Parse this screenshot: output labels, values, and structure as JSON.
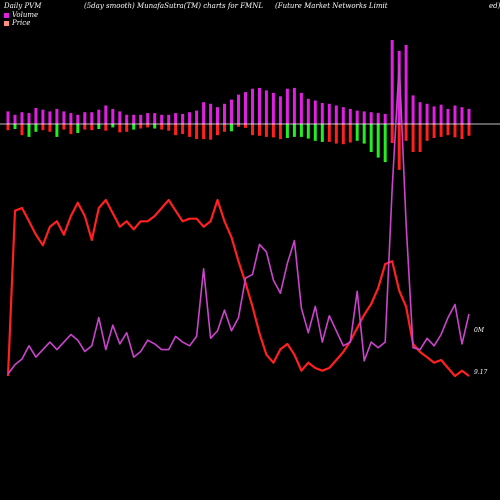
{
  "header": {
    "left": "Daily PVM",
    "center": "(5day smooth) MunafaSutra(TM) charts for FMNL",
    "right": "(Future  Market Networks Limit",
    "right_tail": "ed)"
  },
  "legend": {
    "volume_label": "Volume",
    "price_label": "Price",
    "volume_color": "#e020e0",
    "price_color": "#ff9080"
  },
  "end_labels": {
    "volume": "0M",
    "price": "9.17"
  },
  "colors": {
    "background": "#000000",
    "baseline": "#ffffff",
    "volume_bar": "#e020e0",
    "up_bar": "#22ee22",
    "down_bar": "#ff2020",
    "price_line": "#ff2020",
    "volume_line": "#cc44cc"
  },
  "chart_data": {
    "type": "line",
    "x": [
      1,
      2,
      3,
      4,
      5,
      6,
      7,
      8,
      9,
      10,
      11,
      12,
      13,
      14,
      15,
      16,
      17,
      18,
      19,
      20,
      21,
      22,
      23,
      24,
      25,
      26,
      27,
      28,
      29,
      30,
      31,
      32,
      33,
      34,
      35,
      36,
      37,
      38,
      39,
      40,
      41,
      42,
      43,
      44,
      45,
      46,
      47,
      48,
      49,
      50,
      51,
      52,
      53,
      54,
      55,
      56,
      57,
      58,
      59,
      60,
      61,
      62,
      63,
      64,
      65,
      66,
      67
    ],
    "series": [
      {
        "name": "Price",
        "values": [
          9.0,
          15.2,
          15.3,
          14.8,
          14.3,
          13.9,
          14.6,
          14.8,
          14.3,
          15.0,
          15.5,
          15.0,
          14.1,
          15.3,
          15.6,
          15.1,
          14.6,
          14.8,
          14.5,
          14.8,
          14.8,
          15.0,
          15.3,
          15.6,
          15.2,
          14.8,
          14.9,
          14.9,
          14.6,
          14.8,
          15.6,
          14.8,
          14.2,
          13.3,
          12.5,
          11.6,
          10.6,
          9.8,
          9.5,
          10.0,
          10.2,
          9.8,
          9.2,
          9.5,
          9.3,
          9.2,
          9.3,
          9.6,
          9.9,
          10.3,
          10.8,
          11.3,
          11.7,
          12.3,
          13.2,
          13.3,
          12.2,
          11.6,
          10.2,
          9.9,
          9.7,
          9.5,
          9.6,
          9.3,
          9.0,
          9.2,
          9.0
        ]
      },
      {
        "name": "Volume smooth",
        "values": [
          0.0,
          0.05,
          0.08,
          0.15,
          0.09,
          0.13,
          0.17,
          0.13,
          0.17,
          0.21,
          0.18,
          0.12,
          0.15,
          0.3,
          0.13,
          0.26,
          0.16,
          0.22,
          0.09,
          0.12,
          0.18,
          0.16,
          0.13,
          0.13,
          0.2,
          0.17,
          0.15,
          0.2,
          0.56,
          0.19,
          0.23,
          0.34,
          0.23,
          0.3,
          0.51,
          0.53,
          0.69,
          0.65,
          0.5,
          0.43,
          0.59,
          0.71,
          0.35,
          0.22,
          0.36,
          0.17,
          0.31,
          0.23,
          0.15,
          0.17,
          0.44,
          0.07,
          0.17,
          0.14,
          0.17,
          0.99,
          1.65,
          0.8,
          0.14,
          0.13,
          0.19,
          0.15,
          0.21,
          0.3,
          0.37,
          0.16,
          0.32
        ]
      }
    ],
    "volume_bars": [
      0.15,
      0.11,
      0.14,
      0.13,
      0.19,
      0.17,
      0.15,
      0.18,
      0.15,
      0.13,
      0.11,
      0.14,
      0.14,
      0.17,
      0.22,
      0.18,
      0.15,
      0.11,
      0.11,
      0.11,
      0.13,
      0.13,
      0.11,
      0.11,
      0.13,
      0.12,
      0.14,
      0.16,
      0.26,
      0.24,
      0.2,
      0.24,
      0.29,
      0.35,
      0.38,
      0.42,
      0.43,
      0.4,
      0.37,
      0.33,
      0.42,
      0.43,
      0.37,
      0.3,
      0.28,
      0.25,
      0.24,
      0.22,
      0.2,
      0.18,
      0.16,
      0.15,
      0.14,
      0.13,
      0.12,
      1.0,
      0.87,
      0.94,
      0.34,
      0.26,
      0.24,
      0.21,
      0.23,
      0.18,
      0.22,
      0.2,
      0.18
    ],
    "price_change_bars": [
      -0.11,
      -0.09,
      -0.2,
      -0.23,
      -0.14,
      -0.11,
      -0.14,
      -0.23,
      -0.1,
      -0.18,
      -0.16,
      -0.1,
      -0.11,
      -0.09,
      -0.12,
      -0.06,
      -0.15,
      -0.14,
      -0.1,
      -0.08,
      -0.06,
      -0.08,
      -0.1,
      -0.12,
      -0.2,
      -0.18,
      -0.23,
      -0.27,
      -0.27,
      -0.28,
      -0.2,
      -0.14,
      -0.13,
      -0.05,
      -0.07,
      -0.2,
      -0.21,
      -0.23,
      -0.24,
      -0.27,
      -0.25,
      -0.23,
      -0.23,
      -0.26,
      -0.3,
      -0.32,
      -0.32,
      -0.35,
      -0.36,
      -0.33,
      -0.3,
      -0.35,
      -0.5,
      -0.6,
      -0.68,
      -0.34,
      -0.82,
      -0.3,
      -0.5,
      -0.5,
      -0.3,
      -0.25,
      -0.23,
      -0.2,
      -0.24,
      -0.27,
      -0.21
    ],
    "price_change_direction": [
      "down",
      "up",
      "down",
      "up",
      "up",
      "down",
      "down",
      "up",
      "down",
      "down",
      "up",
      "down",
      "down",
      "up",
      "down",
      "up",
      "down",
      "down",
      "up",
      "down",
      "down",
      "up",
      "down",
      "down",
      "down",
      "down",
      "down",
      "down",
      "down",
      "down",
      "down",
      "down",
      "up",
      "down",
      "down",
      "down",
      "down",
      "down",
      "down",
      "down",
      "up",
      "up",
      "up",
      "up",
      "up",
      "up",
      "down",
      "down",
      "down",
      "down",
      "up",
      "up",
      "up",
      "up",
      "up",
      "down",
      "down",
      "down",
      "down",
      "down",
      "down",
      "down",
      "down",
      "down",
      "down",
      "down",
      "down"
    ]
  }
}
